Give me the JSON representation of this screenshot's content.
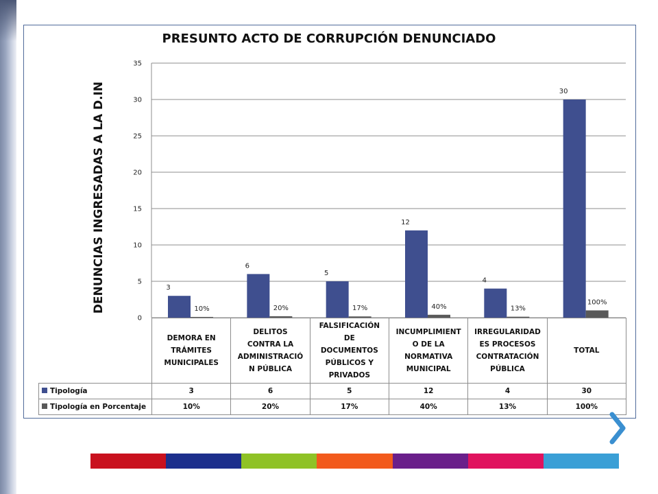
{
  "chart_data": {
    "type": "bar",
    "title": "PRESUNTO ACTO DE CORRUPCIÓN DENUNCIADO",
    "ylabel": "DENUNCIAS INGRESADAS A LA D.IN",
    "xlabel": "",
    "ylim": [
      0,
      35
    ],
    "yticks": [
      "0",
      "5",
      "10",
      "15",
      "20",
      "25",
      "30",
      "35"
    ],
    "grid": true,
    "legend": "data-table",
    "categories": [
      "DEMORA EN TRÁMITES MUNICIPALES",
      "DELITOS CONTRA LA ADMINISTRACIÓN PÚBLICA",
      "FALSIFICACIÓN DE DOCUMENTOS PÚBLICOS Y PRIVADOS",
      "INCUMPLIMIENTO DE LA NORMATIVA MUNICIPAL",
      "IRREGULARIDADES PROCESOS CONTRATACIÓN PÚBLICA",
      "TOTAL"
    ],
    "category_display": [
      "DEMORA EN\nTRÁMITES\nMUNICIPALES",
      "DELITOS\nCONTRA LA\nADMINISTRACIÓ\nN PÚBLICA",
      "FALSIFICACIÓN\nDE\nDOCUMENTOS\nPÚBLICOS Y\nPRIVADOS",
      "INCUMPLIMIENT\nO DE LA\nNORMATIVA\nMUNICIPAL",
      "IRREGULARIDAD\nES PROCESOS\nCONTRATACIÓN\nPÚBLICA",
      "TOTAL"
    ],
    "series": [
      {
        "name": "Tipología",
        "color": "#3f4f8f",
        "values": [
          3,
          6,
          5,
          12,
          4,
          30
        ],
        "labels": [
          "3",
          "6",
          "5",
          "12",
          "4",
          "30"
        ]
      },
      {
        "name": "Tipología en Porcentaje",
        "color": "#595959",
        "values": [
          0.1,
          0.2,
          0.17,
          0.4,
          0.13,
          1.0
        ],
        "labels": [
          "10%",
          "20%",
          "17%",
          "40%",
          "13%",
          "100%"
        ]
      }
    ]
  },
  "decor": {
    "next_icon": "chevron-right-icon",
    "color_bar": [
      "#c9111e",
      "#1c2f8c",
      "#8fc226",
      "#f25a1c",
      "#6a1f8a",
      "#e0135e",
      "#3a9fd6"
    ]
  }
}
